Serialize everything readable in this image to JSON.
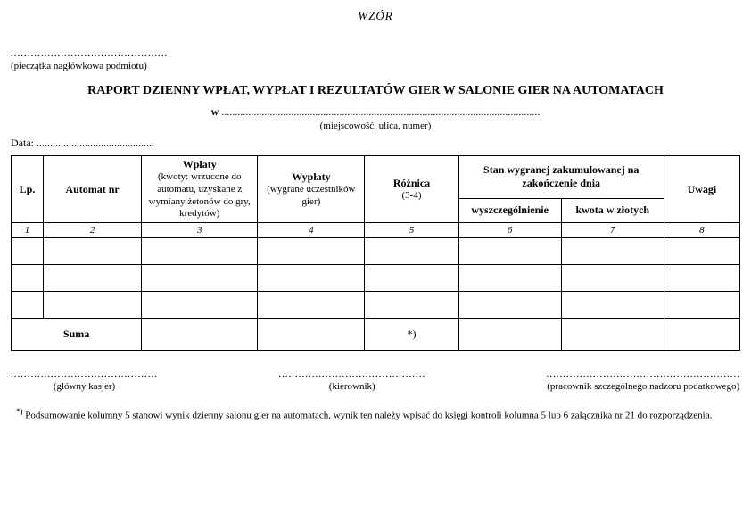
{
  "header": {
    "wzor": "WZÓR",
    "stamp_dots": "...............................................",
    "stamp_caption": "(pieczątka nagłówkowa podmiotu)"
  },
  "title": "RAPORT DZIENNY WPŁAT, WYPŁAT I REZULTATÓW GIER W SALONIE GIER NA AUTOMATACH",
  "place_line": {
    "prefix": "w",
    "dots": " .......................................................................................................................",
    "caption": "(miejscowość, ulica, numer)"
  },
  "date_line": {
    "label": "Data: ",
    "dots": "............................................"
  },
  "table": {
    "type": "table",
    "columns": [
      {
        "label": "Lp.",
        "num": "1"
      },
      {
        "label": "Automat nr",
        "num": "2"
      },
      {
        "label": "Wpłaty",
        "sub": "(kwoty: wrzucone do automatu, uzyskane z wymiany żetonów do gry, kredytów)",
        "num": "3"
      },
      {
        "label": "Wypłaty",
        "sub": "(wygrane uczestników gier)",
        "num": "4"
      },
      {
        "label": "Różnica",
        "sub": "(3-4)",
        "num": "5"
      },
      {
        "group": "Stan wygranej zakumulowanej na zakończenie dnia",
        "children": [
          {
            "label": "wyszczególnienie",
            "num": "6"
          },
          {
            "label": "kwota w złotych",
            "num": "7"
          }
        ]
      },
      {
        "label": "Uwagi",
        "num": "8"
      }
    ],
    "blank_rows": 3,
    "suma_label": "Suma",
    "asterisk": "*)",
    "border_color": "#000000",
    "background_color": "#ffffff",
    "header_fontsize": 12,
    "num_fontsize": 11
  },
  "signatures": [
    {
      "dots": "............................................",
      "caption": "(główny kasjer)"
    },
    {
      "dots": "............................................",
      "caption": "(kierownik)"
    },
    {
      "dots": "..........................................................",
      "caption": "(pracownik szczególnego nadzoru podatkowego)"
    }
  ],
  "footnote": {
    "mark": "*)",
    "text": "Podsumowanie kolumny 5 stanowi wynik dzienny salonu gier na automatach, wynik ten należy wpisać do księgi kontroli kolumna 5 lub 6 załącznika nr 21 do rozporządzenia."
  }
}
